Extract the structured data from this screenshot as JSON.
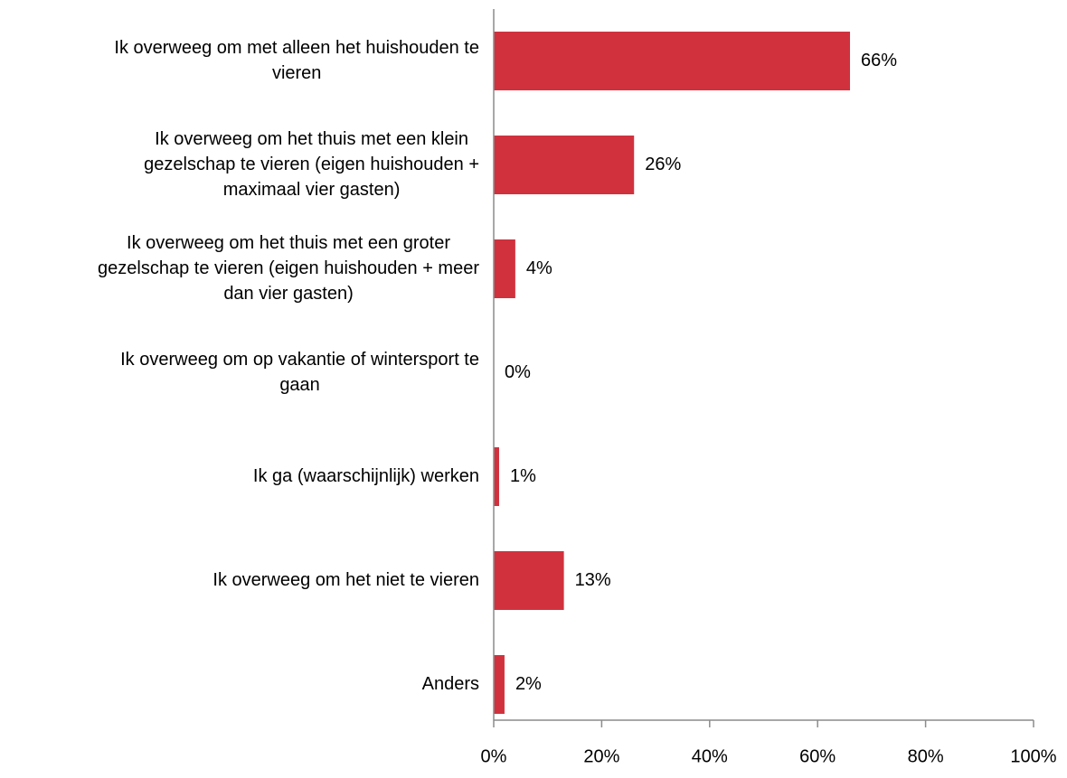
{
  "chart_data": {
    "type": "barh",
    "categories": [
      [
        "Ik overweeg om met alleen het huishouden te",
        "vieren"
      ],
      [
        "Ik overweeg om het thuis met een klein",
        "gezelschap te vieren (eigen huishouden +",
        "maximaal vier gasten)"
      ],
      [
        "Ik overweeg om het thuis met een groter",
        "gezelschap te vieren (eigen huishouden + meer",
        "dan vier gasten)"
      ],
      [
        "Ik overweeg om op vakantie of wintersport te",
        "gaan"
      ],
      [
        "Ik ga (waarschijnlijk) werken"
      ],
      [
        "Ik overweeg om het niet te vieren"
      ],
      [
        "Anders"
      ]
    ],
    "values": [
      66,
      26,
      4,
      0,
      1,
      13,
      2
    ],
    "value_labels": [
      "66%",
      "26%",
      "4%",
      "0%",
      "1%",
      "13%",
      "2%"
    ],
    "color": "#d1313d",
    "xlim": [
      0,
      100
    ],
    "xticks": [
      {
        "value": 0,
        "label": "0%"
      },
      {
        "value": 20,
        "label": "20%"
      },
      {
        "value": 40,
        "label": "40%"
      },
      {
        "value": 60,
        "label": "60%"
      },
      {
        "value": 80,
        "label": "80%"
      },
      {
        "value": 100,
        "label": "100%"
      }
    ],
    "grid": false
  }
}
